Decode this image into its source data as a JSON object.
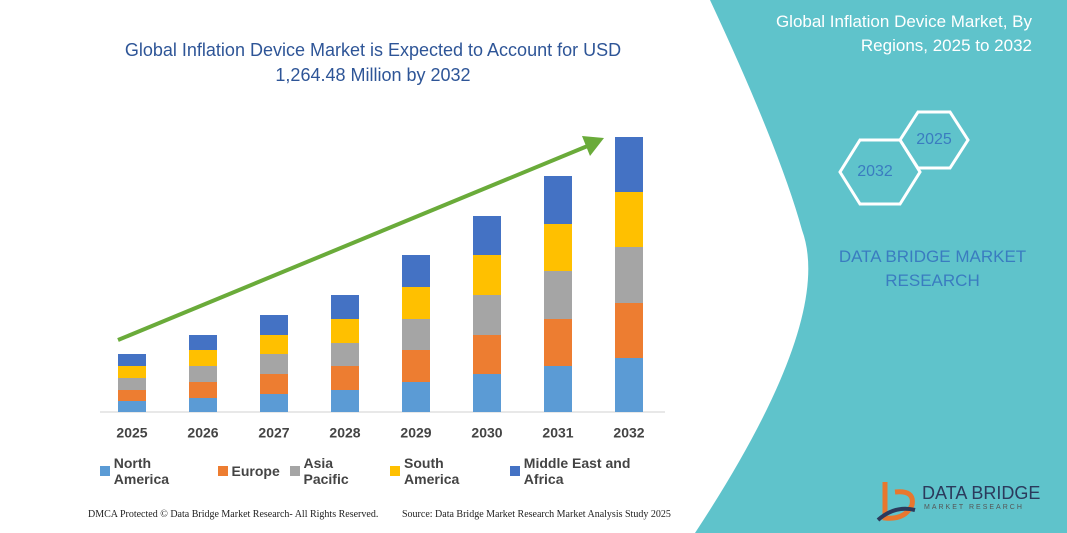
{
  "chart_data": {
    "type": "bar",
    "stacked": true,
    "title": "Global Inflation Device Market is Expected to Account for USD 1,264.48 Million by 2032",
    "categories": [
      "2025",
      "2026",
      "2027",
      "2028",
      "2029",
      "2030",
      "2031",
      "2032"
    ],
    "series": [
      {
        "name": "North America",
        "color": "#5b9bd5",
        "values": [
          11,
          14,
          18,
          22,
          30,
          38,
          46,
          54
        ]
      },
      {
        "name": "Europe",
        "color": "#ed7d31",
        "values": [
          11,
          16,
          20,
          24,
          32,
          39,
          47,
          55
        ]
      },
      {
        "name": "Asia Pacific",
        "color": "#a5a5a5",
        "values": [
          12,
          16,
          20,
          23,
          31,
          40,
          48,
          56
        ]
      },
      {
        "name": "South America",
        "color": "#ffc000",
        "values": [
          12,
          16,
          19,
          24,
          32,
          40,
          47,
          55
        ]
      },
      {
        "name": "Middle East and Africa",
        "color": "#4472c4",
        "values": [
          12,
          15,
          20,
          24,
          32,
          39,
          48,
          55
        ]
      }
    ],
    "ylim": [
      0,
      275
    ]
  },
  "panel": {
    "title": "Global Inflation Device Market, By Regions, 2025 to 2032",
    "hex_top": "2025",
    "hex_bottom": "2032",
    "brand": "DATA BRIDGE MARKET RESEARCH"
  },
  "logo": {
    "name": "DATA BRIDGE",
    "tagline": "MARKET RESEARCH"
  },
  "footer": {
    "left": "DMCA Protected © Data Bridge Market Research- All Rights Reserved.",
    "right": "Source: Data Bridge Market Research Market Analysis Study 2025"
  }
}
